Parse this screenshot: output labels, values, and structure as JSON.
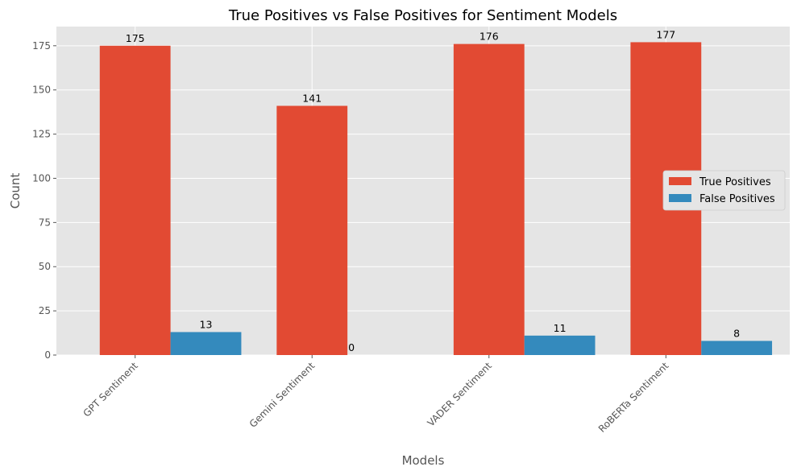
{
  "chart_data": {
    "type": "bar",
    "title": "True Positives vs False Positives for Sentiment Models",
    "xlabel": "Models",
    "ylabel": "Count",
    "categories": [
      "GPT Sentiment",
      "Gemini Sentiment",
      "VADER Sentiment",
      "RoBERTa Sentiment"
    ],
    "series": [
      {
        "name": "True Positives",
        "values": [
          175,
          141,
          176,
          177
        ],
        "color": "#E24A33"
      },
      {
        "name": "False Positives",
        "values": [
          13,
          0,
          11,
          8
        ],
        "color": "#348ABD"
      }
    ],
    "yticks": [
      0,
      25,
      50,
      75,
      100,
      125,
      150,
      175
    ],
    "ylim": [
      0,
      185.85
    ],
    "grid": true,
    "legend_position": "center-right",
    "background": "#E5E5E5"
  }
}
